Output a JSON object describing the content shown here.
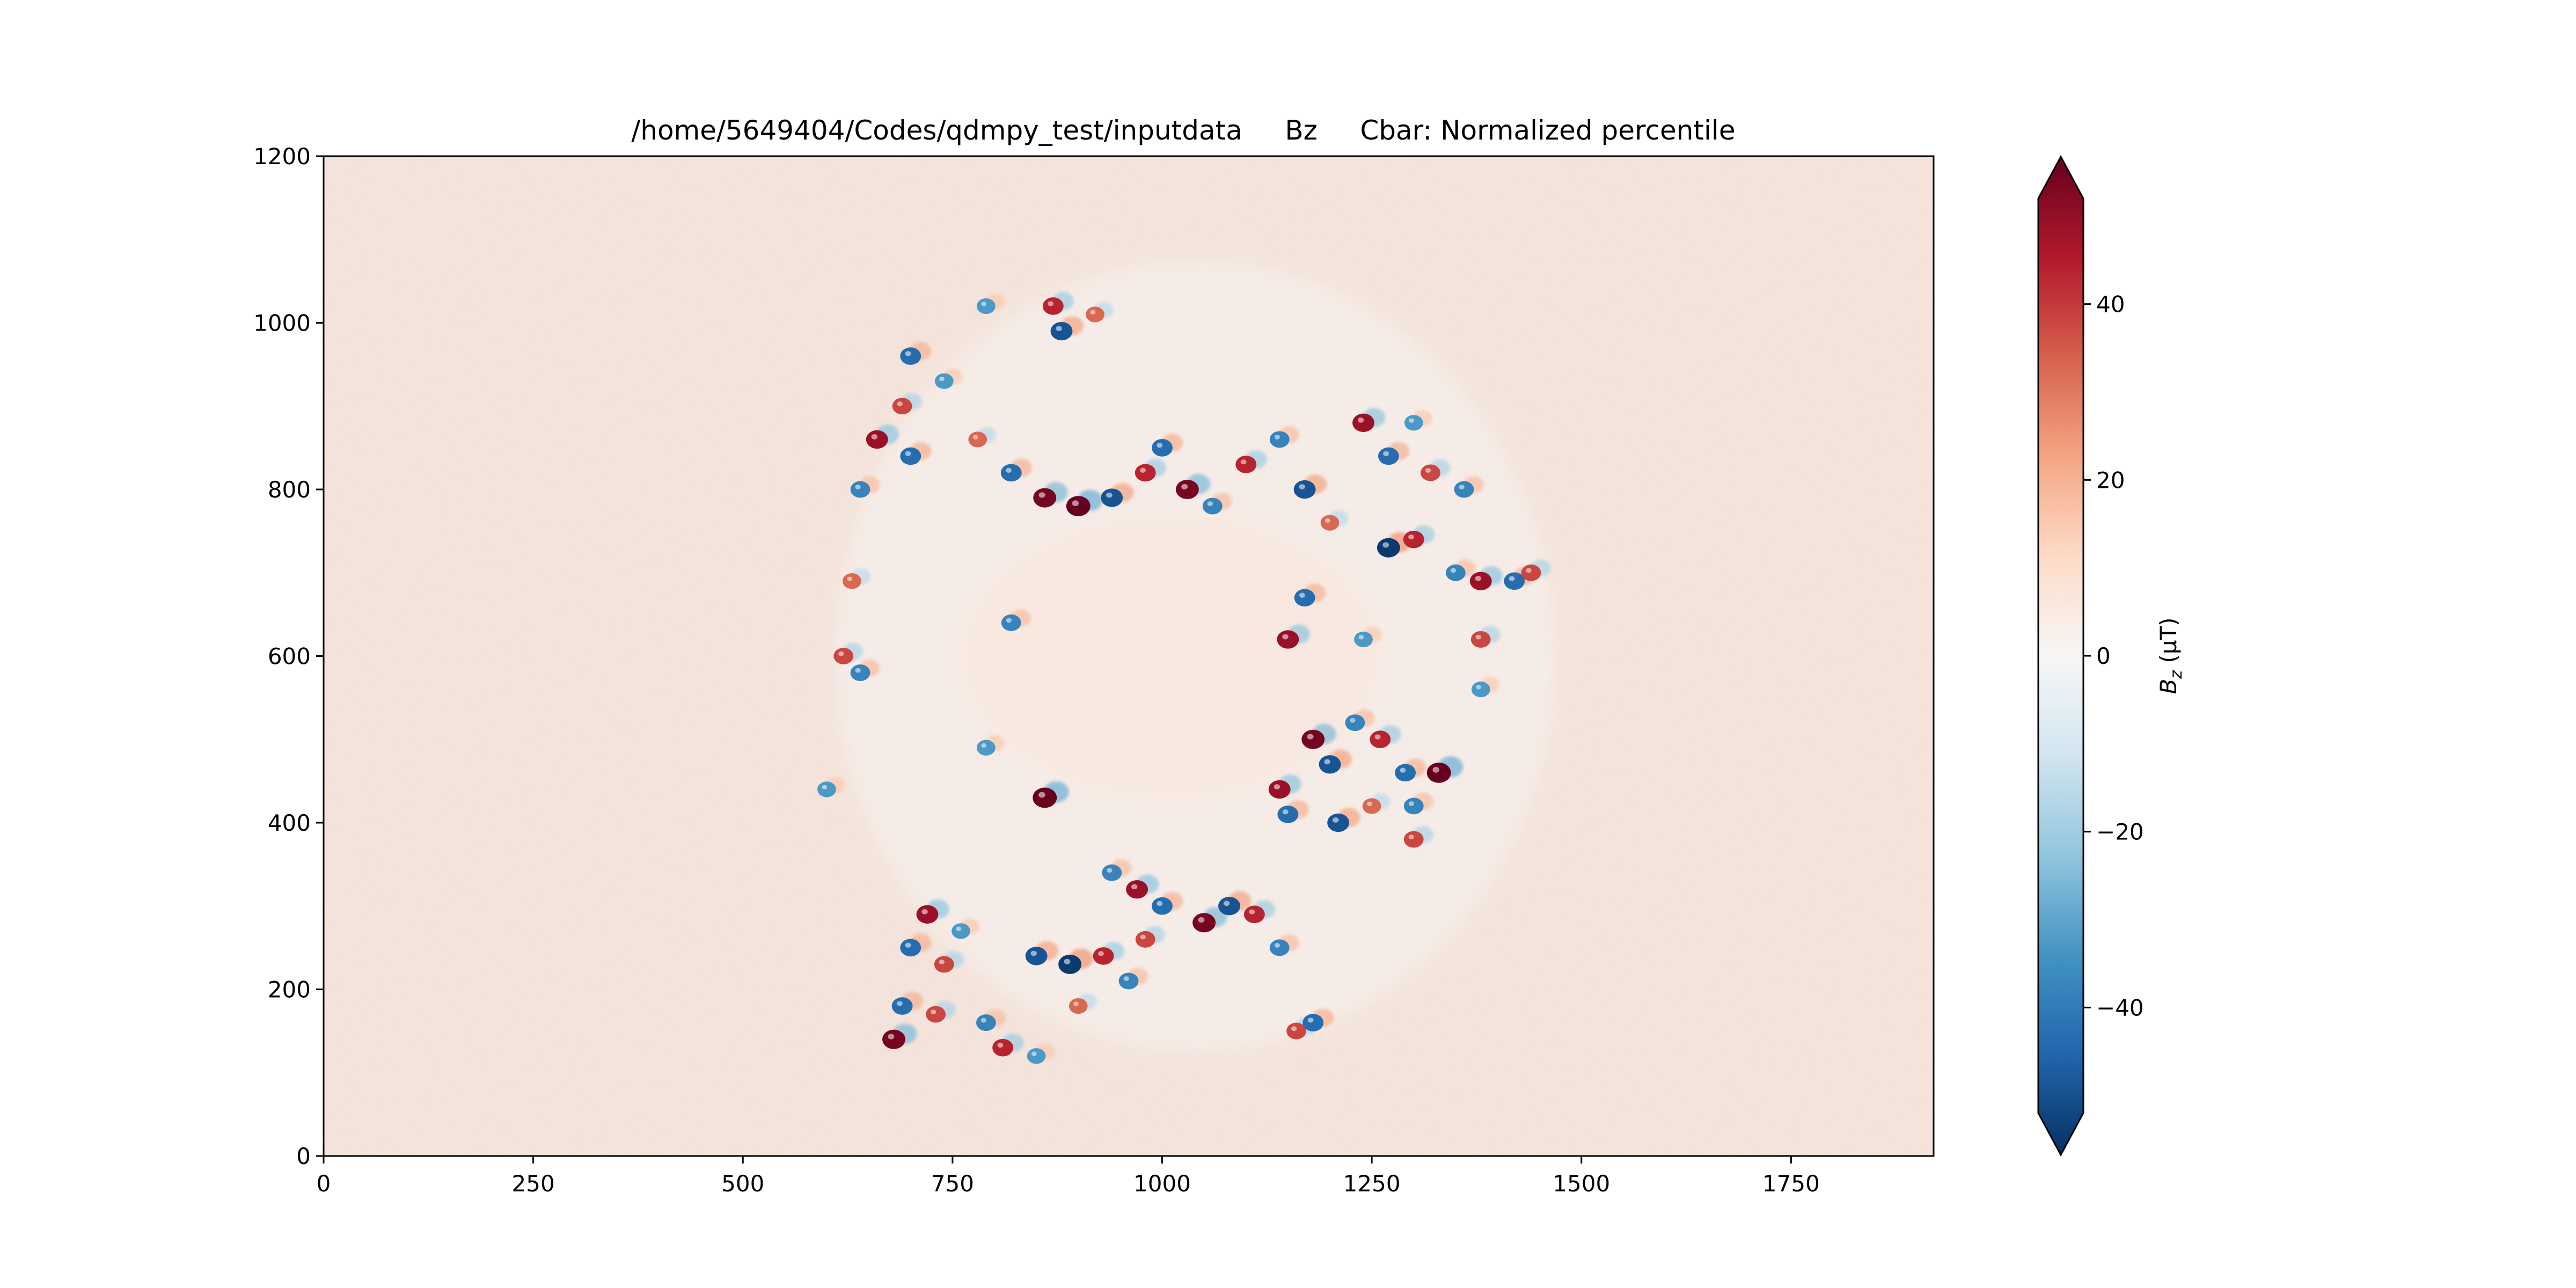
{
  "chart_data": {
    "type": "heatmap",
    "title": "/home/5649404/Codes/qdmpy_test/inputdata     Bz     Cbar: Normalized percentile",
    "xlabel": "",
    "ylabel": "",
    "xlim": [
      0,
      1920
    ],
    "ylim": [
      0,
      1200
    ],
    "x_ticks": [
      0,
      250,
      500,
      750,
      1000,
      1250,
      1500,
      1750
    ],
    "y_ticks": [
      0,
      200,
      400,
      600,
      800,
      1000,
      1200
    ],
    "x_tick_labels": [
      "0",
      "250",
      "500",
      "750",
      "1000",
      "1250",
      "1500",
      "1750"
    ],
    "y_tick_labels": [
      "0",
      "200",
      "400",
      "600",
      "800",
      "1000",
      "1200"
    ],
    "colormap": "RdBu_r",
    "background_value": 5,
    "colorbar": {
      "label": "Bz (μT)",
      "label_main": "B",
      "label_sub": "z",
      "label_unit": " (μT)",
      "range": [
        -52,
        52
      ],
      "extend": "both",
      "ticks": [
        -40,
        -20,
        0,
        20,
        40
      ],
      "tick_labels": [
        "−40",
        "−20",
        "0",
        "20",
        "40"
      ],
      "colors": [
        "#053061",
        "#2166ac",
        "#4393c3",
        "#92c5de",
        "#d1e5f0",
        "#f7f7f7",
        "#fddbc7",
        "#f4a582",
        "#d6604d",
        "#b2182b",
        "#67001f"
      ]
    },
    "region": {
      "outer_center": [
        1040,
        600
      ],
      "outer_radii": [
        430,
        475
      ],
      "inner_center": [
        1010,
        600
      ],
      "inner_radii": [
        250,
        170
      ]
    },
    "features": [
      {
        "x": 870,
        "y": 1020,
        "v": 40
      },
      {
        "x": 880,
        "y": 990,
        "v": -45
      },
      {
        "x": 920,
        "y": 1010,
        "v": 30
      },
      {
        "x": 700,
        "y": 960,
        "v": -40
      },
      {
        "x": 690,
        "y": 900,
        "v": 35
      },
      {
        "x": 740,
        "y": 930,
        "v": -30
      },
      {
        "x": 660,
        "y": 860,
        "v": 45
      },
      {
        "x": 700,
        "y": 840,
        "v": -40
      },
      {
        "x": 640,
        "y": 800,
        "v": -35
      },
      {
        "x": 780,
        "y": 860,
        "v": 30
      },
      {
        "x": 820,
        "y": 820,
        "v": -40
      },
      {
        "x": 860,
        "y": 790,
        "v": 50
      },
      {
        "x": 900,
        "y": 780,
        "v": 55
      },
      {
        "x": 940,
        "y": 790,
        "v": -45
      },
      {
        "x": 980,
        "y": 820,
        "v": 40
      },
      {
        "x": 1000,
        "y": 850,
        "v": -40
      },
      {
        "x": 1030,
        "y": 800,
        "v": 50
      },
      {
        "x": 1060,
        "y": 780,
        "v": -35
      },
      {
        "x": 1100,
        "y": 830,
        "v": 40
      },
      {
        "x": 1140,
        "y": 860,
        "v": -35
      },
      {
        "x": 1170,
        "y": 800,
        "v": -45
      },
      {
        "x": 1200,
        "y": 760,
        "v": 30
      },
      {
        "x": 1240,
        "y": 880,
        "v": 45
      },
      {
        "x": 1270,
        "y": 840,
        "v": -40
      },
      {
        "x": 1300,
        "y": 880,
        "v": -30
      },
      {
        "x": 1320,
        "y": 820,
        "v": 35
      },
      {
        "x": 1270,
        "y": 730,
        "v": -50
      },
      {
        "x": 1300,
        "y": 740,
        "v": 40
      },
      {
        "x": 1350,
        "y": 700,
        "v": -35
      },
      {
        "x": 1380,
        "y": 690,
        "v": 45
      },
      {
        "x": 1420,
        "y": 690,
        "v": -40
      },
      {
        "x": 1440,
        "y": 700,
        "v": 35
      },
      {
        "x": 1150,
        "y": 620,
        "v": 45
      },
      {
        "x": 1170,
        "y": 670,
        "v": -40
      },
      {
        "x": 1240,
        "y": 620,
        "v": -30
      },
      {
        "x": 1380,
        "y": 620,
        "v": 35
      },
      {
        "x": 1180,
        "y": 500,
        "v": 50
      },
      {
        "x": 1200,
        "y": 470,
        "v": -45
      },
      {
        "x": 1230,
        "y": 520,
        "v": -35
      },
      {
        "x": 1260,
        "y": 500,
        "v": 40
      },
      {
        "x": 1290,
        "y": 460,
        "v": -40
      },
      {
        "x": 1330,
        "y": 460,
        "v": 55
      },
      {
        "x": 1300,
        "y": 420,
        "v": -35
      },
      {
        "x": 1250,
        "y": 420,
        "v": 30
      },
      {
        "x": 1140,
        "y": 440,
        "v": 45
      },
      {
        "x": 1150,
        "y": 410,
        "v": -40
      },
      {
        "x": 1210,
        "y": 400,
        "v": -45
      },
      {
        "x": 1300,
        "y": 380,
        "v": 35
      },
      {
        "x": 860,
        "y": 430,
        "v": 55
      },
      {
        "x": 790,
        "y": 490,
        "v": -30
      },
      {
        "x": 820,
        "y": 640,
        "v": -35
      },
      {
        "x": 1050,
        "y": 280,
        "v": 50
      },
      {
        "x": 1080,
        "y": 300,
        "v": -45
      },
      {
        "x": 1110,
        "y": 290,
        "v": 40
      },
      {
        "x": 1000,
        "y": 300,
        "v": -40
      },
      {
        "x": 970,
        "y": 320,
        "v": 45
      },
      {
        "x": 940,
        "y": 340,
        "v": -35
      },
      {
        "x": 980,
        "y": 260,
        "v": 35
      },
      {
        "x": 720,
        "y": 290,
        "v": 45
      },
      {
        "x": 700,
        "y": 250,
        "v": -40
      },
      {
        "x": 740,
        "y": 230,
        "v": 35
      },
      {
        "x": 760,
        "y": 270,
        "v": -30
      },
      {
        "x": 850,
        "y": 240,
        "v": -45
      },
      {
        "x": 890,
        "y": 230,
        "v": -50
      },
      {
        "x": 930,
        "y": 240,
        "v": 40
      },
      {
        "x": 960,
        "y": 210,
        "v": -35
      },
      {
        "x": 690,
        "y": 180,
        "v": -40
      },
      {
        "x": 730,
        "y": 170,
        "v": 35
      },
      {
        "x": 680,
        "y": 140,
        "v": 50
      },
      {
        "x": 790,
        "y": 160,
        "v": -35
      },
      {
        "x": 810,
        "y": 130,
        "v": 40
      },
      {
        "x": 850,
        "y": 120,
        "v": -30
      },
      {
        "x": 900,
        "y": 180,
        "v": 30
      },
      {
        "x": 1140,
        "y": 250,
        "v": -35
      },
      {
        "x": 1160,
        "y": 150,
        "v": 35
      },
      {
        "x": 1180,
        "y": 160,
        "v": -40
      },
      {
        "x": 600,
        "y": 440,
        "v": -30
      },
      {
        "x": 620,
        "y": 600,
        "v": 35
      },
      {
        "x": 640,
        "y": 580,
        "v": -35
      },
      {
        "x": 630,
        "y": 690,
        "v": 30
      },
      {
        "x": 1380,
        "y": 560,
        "v": -30
      },
      {
        "x": 1360,
        "y": 800,
        "v": -35
      },
      {
        "x": 790,
        "y": 1020,
        "v": -30
      }
    ]
  }
}
